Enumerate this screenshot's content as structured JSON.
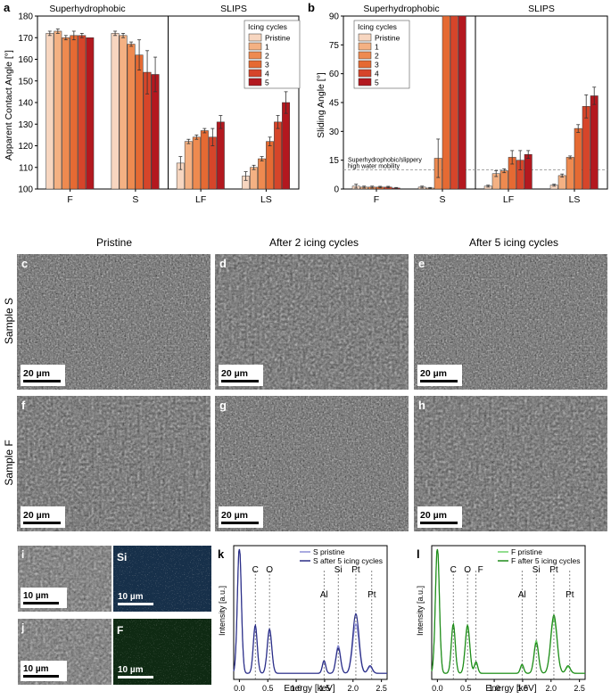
{
  "figure": {
    "colors": {
      "series": [
        "#f7d6c0",
        "#f4b183",
        "#ee8a50",
        "#e56a33",
        "#d6452a",
        "#b3181f"
      ],
      "sem_bg": "#5a5a5a",
      "si_map": "#17304a",
      "f_map": "#0f2a13",
      "s_pristine": "#8d8fd6",
      "s_after": "#2a2e86",
      "f_pristine": "#6fd36a",
      "f_after": "#1f8a1a"
    },
    "panel_a": {
      "letter": "a",
      "group_left": "Superhydrophobic",
      "group_right": "SLIPS",
      "legend_title": "Icing cycles",
      "chart_data": {
        "type": "bar",
        "ylabel": "Apparent Contact Angle [°]",
        "ylim": [
          100,
          180
        ],
        "yticks": [
          "100",
          "110",
          "120",
          "130",
          "140",
          "150",
          "160",
          "170",
          "180"
        ],
        "reference_line": 150,
        "categories": [
          "F",
          "S",
          "LF",
          "LS"
        ],
        "series": [
          {
            "name": "Pristine",
            "values": [
              172,
              172,
              112,
              106
            ],
            "errors": [
              1,
              1,
              3,
              2
            ]
          },
          {
            "name": "1",
            "values": [
              173,
              171,
              122,
              110
            ],
            "errors": [
              1,
              1,
              1,
              1
            ]
          },
          {
            "name": "2",
            "values": [
              170,
              167,
              124,
              114
            ],
            "errors": [
              1,
              1,
              1,
              1
            ]
          },
          {
            "name": "3",
            "values": [
              171,
              162,
              127,
              122
            ],
            "errors": [
              2,
              7,
              1,
              2
            ]
          },
          {
            "name": "4",
            "values": [
              171,
              154,
              124,
              131
            ],
            "errors": [
              1,
              10,
              4,
              3
            ]
          },
          {
            "name": "5",
            "values": [
              170,
              153,
              131,
              140
            ],
            "errors": [
              0,
              8,
              3,
              5
            ]
          }
        ]
      }
    },
    "panel_b": {
      "letter": "b",
      "group_left": "Superhydrophobic",
      "group_right": "SLIPS",
      "legend_title": "Icing cycles",
      "threshold_label_1": "Superhydrophobic/slippery",
      "threshold_label_2": "high water mobility",
      "chart_data": {
        "type": "bar",
        "ylabel": "Sliding Angle [°]",
        "ylim": [
          0,
          90
        ],
        "yticks": [
          "0",
          "15",
          "30",
          "45",
          "60",
          "75",
          "90"
        ],
        "reference_line": 10,
        "categories": [
          "F",
          "S",
          "LF",
          "LS"
        ],
        "series": [
          {
            "name": "Pristine",
            "values": [
              1.5,
              1,
              1.5,
              2
            ],
            "errors": [
              1,
              0.5,
              0.5,
              0.5
            ]
          },
          {
            "name": "1",
            "values": [
              1,
              0.5,
              8,
              7
            ],
            "errors": [
              0.5,
              0.3,
              1.5,
              0.8
            ]
          },
          {
            "name": "2",
            "values": [
              1,
              16,
              9.5,
              16.5
            ],
            "errors": [
              0.5,
              10,
              1,
              0.7
            ]
          },
          {
            "name": "3",
            "values": [
              1,
              90,
              16.5,
              31.5
            ],
            "errors": [
              0.4,
              0,
              3.5,
              2
            ]
          },
          {
            "name": "4",
            "values": [
              1,
              90,
              15,
              43
            ],
            "errors": [
              0.4,
              0,
              5,
              6
            ]
          },
          {
            "name": "5",
            "values": [
              0.5,
              90,
              18,
              48.5
            ],
            "errors": [
              0.3,
              0,
              2,
              4.5
            ]
          }
        ]
      }
    },
    "sem": {
      "col_titles": [
        "Pristine",
        "After 2 icing cycles",
        "After 5 icing cycles"
      ],
      "row_labels": [
        "Sample S",
        "Sample F"
      ],
      "letters": [
        "c",
        "d",
        "e",
        "f",
        "g",
        "h"
      ],
      "scale_bar": "20 µm"
    },
    "edx_maps": {
      "letters": [
        "i",
        "j"
      ],
      "element_si": "Si",
      "element_f": "F",
      "scale_bar": "10 µm"
    },
    "panel_k": {
      "letter": "k",
      "chart_data": {
        "type": "line",
        "xlabel": "Energy [keV]",
        "ylabel": "Intensity [a.u.]",
        "xlim": [
          -0.1,
          2.6
        ],
        "xticks": [
          "0.0",
          "0.5",
          "1.0",
          "1.5",
          "2.0",
          "2.5"
        ],
        "series": [
          {
            "name": "S pristine",
            "peaks": [
              [
                0.0,
                1.0,
                0.035
              ],
              [
                0.28,
                0.36,
                0.035
              ],
              [
                0.53,
                0.33,
                0.04
              ],
              [
                1.49,
                0.09,
                0.03
              ],
              [
                1.74,
                0.22,
                0.04
              ],
              [
                2.05,
                0.39,
                0.055
              ],
              [
                2.3,
                0.05,
                0.04
              ]
            ]
          },
          {
            "name": "S after 5 icing cycles",
            "peaks": [
              [
                0.0,
                1.0,
                0.035
              ],
              [
                0.28,
                0.38,
                0.035
              ],
              [
                0.53,
                0.35,
                0.04
              ],
              [
                1.49,
                0.1,
                0.03
              ],
              [
                1.74,
                0.2,
                0.04
              ],
              [
                2.05,
                0.47,
                0.055
              ],
              [
                2.3,
                0.06,
                0.04
              ]
            ]
          }
        ],
        "annotations": [
          {
            "label": "C",
            "x": 0.28
          },
          {
            "label": "O",
            "x": 0.53
          },
          {
            "label": "Al",
            "x": 1.49
          },
          {
            "label": "Si",
            "x": 1.74
          },
          {
            "label": "Pt",
            "x": 2.05
          },
          {
            "label": "Pt",
            "x": 2.33
          }
        ]
      }
    },
    "panel_l": {
      "letter": "l",
      "chart_data": {
        "type": "line",
        "xlabel": "Energy [keV]",
        "ylabel": "Intensity [a.u.]",
        "xlim": [
          -0.1,
          2.6
        ],
        "xticks": [
          "0.0",
          "0.5",
          "1.0",
          "1.5",
          "2.0",
          "2.5"
        ],
        "series": [
          {
            "name": "F pristine",
            "peaks": [
              [
                0.0,
                1.0,
                0.035
              ],
              [
                0.28,
                0.38,
                0.035
              ],
              [
                0.53,
                0.36,
                0.04
              ],
              [
                0.68,
                0.08,
                0.03
              ],
              [
                1.49,
                0.06,
                0.03
              ],
              [
                1.74,
                0.26,
                0.04
              ],
              [
                2.05,
                0.43,
                0.055
              ],
              [
                2.3,
                0.05,
                0.04
              ]
            ]
          },
          {
            "name": "F after 5 icing cycles",
            "peaks": [
              [
                0.0,
                1.0,
                0.035
              ],
              [
                0.28,
                0.39,
                0.035
              ],
              [
                0.53,
                0.38,
                0.04
              ],
              [
                0.68,
                0.09,
                0.03
              ],
              [
                1.49,
                0.07,
                0.03
              ],
              [
                1.74,
                0.24,
                0.04
              ],
              [
                2.05,
                0.46,
                0.055
              ],
              [
                2.3,
                0.06,
                0.04
              ]
            ]
          }
        ],
        "annotations": [
          {
            "label": "C",
            "x": 0.28
          },
          {
            "label": "O",
            "x": 0.53
          },
          {
            "label": "F",
            "x": 0.68
          },
          {
            "label": "Al",
            "x": 1.49
          },
          {
            "label": "Si",
            "x": 1.74
          },
          {
            "label": "Pt",
            "x": 2.05
          },
          {
            "label": "Pt",
            "x": 2.33
          }
        ]
      }
    }
  }
}
